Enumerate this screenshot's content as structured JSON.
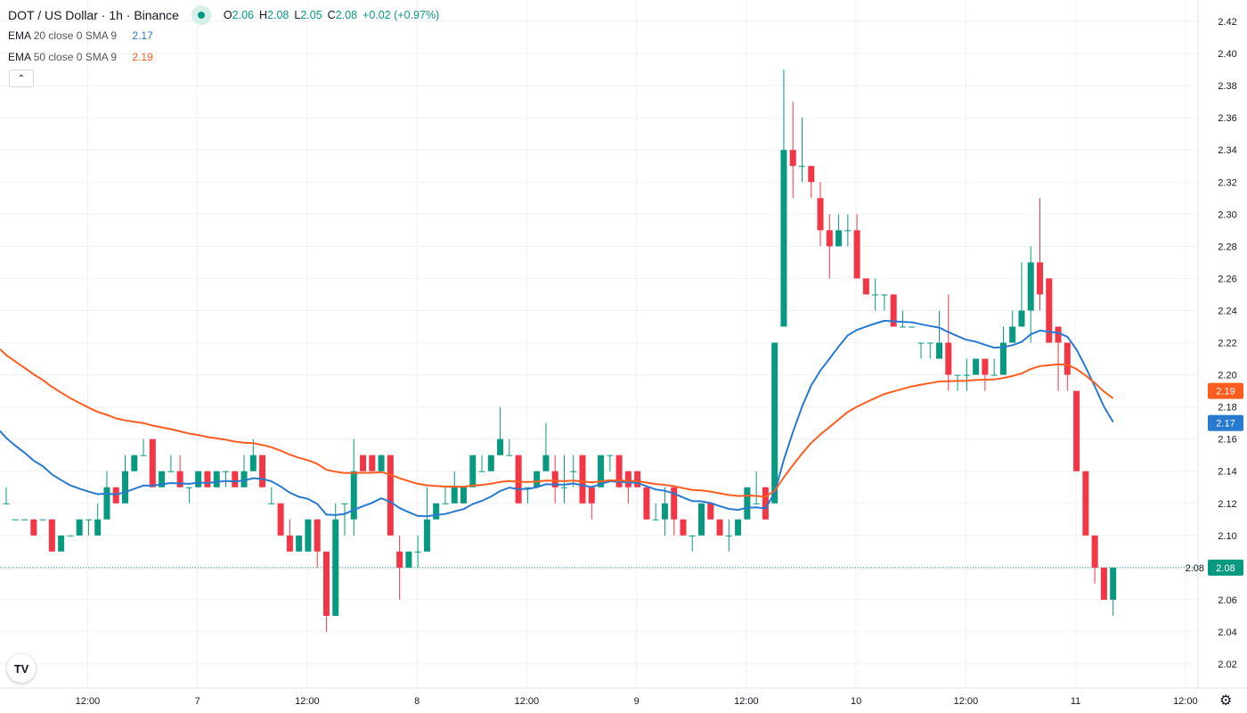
{
  "header": {
    "title": "DOT / US Dollar · 1h · Binance",
    "open_label": "O",
    "open": "2.06",
    "high_label": "H",
    "high": "2.08",
    "low_label": "L",
    "low": "2.05",
    "close_label": "C",
    "close": "2.08",
    "change": "+0.02 (+0.97%)"
  },
  "legend": [
    {
      "name": "EMA",
      "params": "20 close 0 SMA 9",
      "value": "2.17",
      "color": "#2879d0"
    },
    {
      "name": "EMA",
      "params": "50 close 0 SMA 9",
      "value": "2.19",
      "color": "#ff5d1f"
    }
  ],
  "icons": {
    "collapse": "chevron-up-icon",
    "logo": "tradingview-logo",
    "settings": "gear-icon"
  },
  "logo_text": "TV",
  "colors": {
    "up": "#089981",
    "down": "#f23645",
    "ema20": "#2879d0",
    "ema50": "#ff5d1f",
    "grid": "#f0f1f3"
  },
  "chart_data": {
    "type": "candlestick",
    "symbol": "DOT / US Dollar",
    "interval": "1h",
    "ylim": [
      2.01,
      2.43
    ],
    "y_ticks": [
      "2.02",
      "2.04",
      "2.06",
      "2.08",
      "2.10",
      "2.12",
      "2.14",
      "2.16",
      "2.18",
      "2.20",
      "2.22",
      "2.24",
      "2.26",
      "2.28",
      "2.30",
      "2.32",
      "2.34",
      "2.36",
      "2.38",
      "2.40",
      "2.42"
    ],
    "x_ticks": [
      {
        "label": "12:00",
        "index": 9
      },
      {
        "label": "7",
        "index": 21
      },
      {
        "label": "12:00",
        "index": 33
      },
      {
        "label": "8",
        "index": 45
      },
      {
        "label": "12:00",
        "index": 57
      },
      {
        "label": "9",
        "index": 69
      },
      {
        "label": "12:00",
        "index": 81
      },
      {
        "label": "10",
        "index": 93
      },
      {
        "label": "12:00",
        "index": 105
      },
      {
        "label": "11",
        "index": 117
      },
      {
        "label": "12:00",
        "index": 129
      }
    ],
    "ema20_start": 2.165,
    "ema50_start": 2.216,
    "last_price": "2.08",
    "price_badges": [
      {
        "label": "2.19",
        "value": 2.19,
        "color": "#ff5d1f"
      },
      {
        "label": "2.17",
        "value": 2.17,
        "color": "#2879d0"
      },
      {
        "label": "2.08",
        "value": 2.08,
        "color": "#089981"
      }
    ],
    "candles_ohlc": [
      [
        2.12,
        2.13,
        2.12,
        2.12
      ],
      [
        2.11,
        2.11,
        2.11,
        2.11
      ],
      [
        2.11,
        2.11,
        2.11,
        2.11
      ],
      [
        2.11,
        2.11,
        2.1,
        2.1
      ],
      [
        2.11,
        2.11,
        2.11,
        2.11
      ],
      [
        2.11,
        2.11,
        2.09,
        2.09
      ],
      [
        2.09,
        2.1,
        2.09,
        2.1
      ],
      [
        2.1,
        2.1,
        2.1,
        2.1
      ],
      [
        2.1,
        2.11,
        2.1,
        2.11
      ],
      [
        2.11,
        2.11,
        2.1,
        2.11
      ],
      [
        2.1,
        2.12,
        2.1,
        2.11
      ],
      [
        2.11,
        2.14,
        2.11,
        2.13
      ],
      [
        2.13,
        2.13,
        2.12,
        2.12
      ],
      [
        2.12,
        2.15,
        2.12,
        2.14
      ],
      [
        2.14,
        2.15,
        2.14,
        2.15
      ],
      [
        2.15,
        2.16,
        2.15,
        2.15
      ],
      [
        2.16,
        2.16,
        2.13,
        2.13
      ],
      [
        2.13,
        2.14,
        2.13,
        2.14
      ],
      [
        2.14,
        2.15,
        2.14,
        2.14
      ],
      [
        2.14,
        2.15,
        2.13,
        2.13
      ],
      [
        2.13,
        2.13,
        2.12,
        2.13
      ],
      [
        2.13,
        2.14,
        2.13,
        2.14
      ],
      [
        2.14,
        2.14,
        2.13,
        2.13
      ],
      [
        2.13,
        2.14,
        2.13,
        2.14
      ],
      [
        2.14,
        2.14,
        2.13,
        2.14
      ],
      [
        2.14,
        2.14,
        2.13,
        2.13
      ],
      [
        2.13,
        2.15,
        2.13,
        2.14
      ],
      [
        2.14,
        2.16,
        2.14,
        2.15
      ],
      [
        2.15,
        2.15,
        2.13,
        2.13
      ],
      [
        2.12,
        2.13,
        2.12,
        2.12
      ],
      [
        2.12,
        2.12,
        2.1,
        2.1
      ],
      [
        2.1,
        2.11,
        2.09,
        2.09
      ],
      [
        2.09,
        2.1,
        2.09,
        2.1
      ],
      [
        2.09,
        2.11,
        2.09,
        2.11
      ],
      [
        2.11,
        2.11,
        2.08,
        2.09
      ],
      [
        2.09,
        2.09,
        2.04,
        2.05
      ],
      [
        2.05,
        2.12,
        2.05,
        2.11
      ],
      [
        2.12,
        2.12,
        2.1,
        2.12
      ],
      [
        2.11,
        2.16,
        2.1,
        2.14
      ],
      [
        2.15,
        2.15,
        2.14,
        2.14
      ],
      [
        2.15,
        2.15,
        2.14,
        2.14
      ],
      [
        2.14,
        2.15,
        2.14,
        2.15
      ],
      [
        2.15,
        2.15,
        2.1,
        2.1
      ],
      [
        2.09,
        2.1,
        2.06,
        2.08
      ],
      [
        2.08,
        2.09,
        2.08,
        2.09
      ],
      [
        2.09,
        2.1,
        2.08,
        2.09
      ],
      [
        2.09,
        2.13,
        2.09,
        2.11
      ],
      [
        2.11,
        2.12,
        2.11,
        2.12
      ],
      [
        2.12,
        2.13,
        2.12,
        2.12
      ],
      [
        2.12,
        2.14,
        2.12,
        2.13
      ],
      [
        2.12,
        2.13,
        2.12,
        2.13
      ],
      [
        2.13,
        2.15,
        2.13,
        2.15
      ],
      [
        2.14,
        2.15,
        2.14,
        2.14
      ],
      [
        2.14,
        2.15,
        2.14,
        2.15
      ],
      [
        2.15,
        2.18,
        2.15,
        2.16
      ],
      [
        2.15,
        2.16,
        2.15,
        2.15
      ],
      [
        2.15,
        2.15,
        2.12,
        2.12
      ],
      [
        2.13,
        2.13,
        2.12,
        2.13
      ],
      [
        2.13,
        2.14,
        2.13,
        2.14
      ],
      [
        2.14,
        2.17,
        2.14,
        2.15
      ],
      [
        2.14,
        2.15,
        2.12,
        2.13
      ],
      [
        2.13,
        2.15,
        2.12,
        2.13
      ],
      [
        2.14,
        2.15,
        2.13,
        2.14
      ],
      [
        2.15,
        2.15,
        2.12,
        2.12
      ],
      [
        2.13,
        2.13,
        2.11,
        2.12
      ],
      [
        2.13,
        2.15,
        2.13,
        2.15
      ],
      [
        2.15,
        2.15,
        2.14,
        2.15
      ],
      [
        2.15,
        2.15,
        2.13,
        2.13
      ],
      [
        2.14,
        2.14,
        2.12,
        2.13
      ],
      [
        2.14,
        2.14,
        2.13,
        2.13
      ],
      [
        2.13,
        2.13,
        2.11,
        2.11
      ],
      [
        2.11,
        2.12,
        2.11,
        2.11
      ],
      [
        2.11,
        2.13,
        2.1,
        2.12
      ],
      [
        2.13,
        2.13,
        2.1,
        2.11
      ],
      [
        2.11,
        2.11,
        2.1,
        2.1
      ],
      [
        2.1,
        2.1,
        2.09,
        2.1
      ],
      [
        2.1,
        2.12,
        2.1,
        2.12
      ],
      [
        2.12,
        2.12,
        2.11,
        2.11
      ],
      [
        2.11,
        2.11,
        2.1,
        2.1
      ],
      [
        2.1,
        2.11,
        2.09,
        2.1
      ],
      [
        2.1,
        2.11,
        2.1,
        2.11
      ],
      [
        2.11,
        2.13,
        2.11,
        2.13
      ],
      [
        2.12,
        2.14,
        2.12,
        2.12
      ],
      [
        2.13,
        2.13,
        2.11,
        2.11
      ],
      [
        2.12,
        2.22,
        2.12,
        2.22
      ],
      [
        2.23,
        2.39,
        2.23,
        2.34
      ],
      [
        2.34,
        2.37,
        2.31,
        2.33
      ],
      [
        2.33,
        2.36,
        2.32,
        2.33
      ],
      [
        2.33,
        2.33,
        2.31,
        2.32
      ],
      [
        2.31,
        2.32,
        2.28,
        2.29
      ],
      [
        2.29,
        2.3,
        2.26,
        2.28
      ],
      [
        2.28,
        2.3,
        2.28,
        2.29
      ],
      [
        2.29,
        2.3,
        2.28,
        2.29
      ],
      [
        2.29,
        2.3,
        2.26,
        2.26
      ],
      [
        2.26,
        2.26,
        2.25,
        2.25
      ],
      [
        2.25,
        2.26,
        2.24,
        2.25
      ],
      [
        2.25,
        2.25,
        2.24,
        2.25
      ],
      [
        2.25,
        2.25,
        2.23,
        2.23
      ],
      [
        2.23,
        2.24,
        2.23,
        2.23
      ],
      [
        2.23,
        2.23,
        2.23,
        2.23
      ],
      [
        2.22,
        2.22,
        2.21,
        2.22
      ],
      [
        2.22,
        2.22,
        2.21,
        2.22
      ],
      [
        2.21,
        2.24,
        2.21,
        2.22
      ],
      [
        2.22,
        2.25,
        2.19,
        2.2
      ],
      [
        2.2,
        2.2,
        2.19,
        2.2
      ],
      [
        2.2,
        2.21,
        2.19,
        2.2
      ],
      [
        2.2,
        2.21,
        2.2,
        2.21
      ],
      [
        2.21,
        2.21,
        2.19,
        2.2
      ],
      [
        2.2,
        2.21,
        2.2,
        2.2
      ],
      [
        2.2,
        2.23,
        2.2,
        2.22
      ],
      [
        2.22,
        2.24,
        2.22,
        2.23
      ],
      [
        2.23,
        2.27,
        2.23,
        2.24
      ],
      [
        2.24,
        2.28,
        2.22,
        2.27
      ],
      [
        2.27,
        2.31,
        2.24,
        2.25
      ],
      [
        2.26,
        2.26,
        2.22,
        2.22
      ],
      [
        2.23,
        2.23,
        2.19,
        2.22
      ],
      [
        2.22,
        2.22,
        2.19,
        2.2
      ],
      [
        2.19,
        2.19,
        2.14,
        2.14
      ],
      [
        2.14,
        2.14,
        2.1,
        2.1
      ],
      [
        2.1,
        2.1,
        2.07,
        2.08
      ],
      [
        2.08,
        2.08,
        2.06,
        2.06
      ],
      [
        2.06,
        2.08,
        2.05,
        2.08
      ]
    ]
  }
}
